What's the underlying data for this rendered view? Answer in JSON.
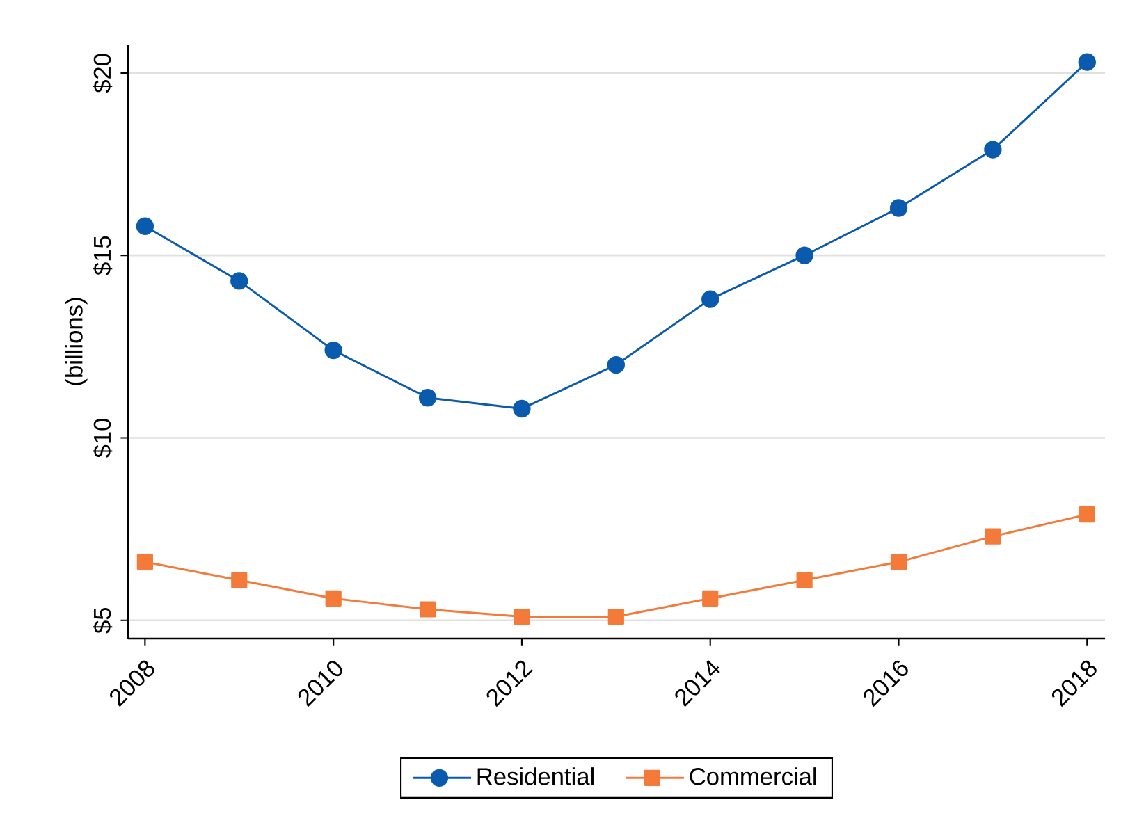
{
  "chart_data": {
    "type": "line",
    "ylabel": "(billions)",
    "x": [
      2008,
      2009,
      2010,
      2011,
      2012,
      2013,
      2014,
      2015,
      2016,
      2017,
      2018
    ],
    "series": [
      {
        "name": "Residential",
        "color": "#0a5aad",
        "marker": "circle",
        "values": [
          15.8,
          14.3,
          12.4,
          11.1,
          10.8,
          12.0,
          13.8,
          15.0,
          16.3,
          17.9,
          20.3
        ]
      },
      {
        "name": "Commercial",
        "color": "#f47a3a",
        "marker": "square",
        "values": [
          6.6,
          6.1,
          5.6,
          5.3,
          5.1,
          5.1,
          5.6,
          6.1,
          6.6,
          7.3,
          7.9
        ]
      }
    ],
    "xlim": [
      2007.82,
      2018.19
    ],
    "ylim": [
      4.5,
      20.78
    ],
    "xticks": [
      2008,
      2010,
      2012,
      2014,
      2016,
      2018
    ],
    "yticks": [
      {
        "value": 5,
        "label": "$5"
      },
      {
        "value": 10,
        "label": "$10"
      },
      {
        "value": 15,
        "label": "$15"
      },
      {
        "value": 20,
        "label": "$20"
      }
    ],
    "grid": "y",
    "legend": "bottom",
    "line_style": "solid"
  }
}
